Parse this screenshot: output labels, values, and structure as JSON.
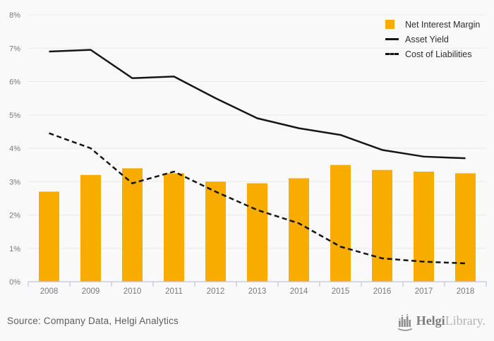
{
  "chart_data": {
    "type": "bar",
    "title": "",
    "xlabel": "",
    "ylabel": "",
    "categories": [
      "2008",
      "2009",
      "2010",
      "2011",
      "2012",
      "2013",
      "2014",
      "2015",
      "2016",
      "2017",
      "2018"
    ],
    "series": [
      {
        "name": "Net Interest Margin",
        "type": "bar",
        "style": "solid",
        "values": [
          2.7,
          3.2,
          3.4,
          3.25,
          3.0,
          2.95,
          3.1,
          3.5,
          3.35,
          3.3,
          3.25
        ]
      },
      {
        "name": "Asset Yield",
        "type": "line",
        "style": "solid",
        "values": [
          6.9,
          6.95,
          6.1,
          6.15,
          5.5,
          4.9,
          4.6,
          4.4,
          3.95,
          3.75,
          3.7
        ]
      },
      {
        "name": "Cost of Liabilities",
        "type": "line",
        "style": "dashed",
        "values": [
          4.45,
          4.0,
          2.95,
          3.3,
          2.7,
          2.15,
          1.75,
          1.05,
          0.7,
          0.6,
          0.55
        ]
      }
    ],
    "ylim": [
      0,
      8
    ],
    "ytick_step": 1,
    "ytick_suffix": "%",
    "grid": true,
    "legend_position": "top-right"
  },
  "colors": {
    "bar": "#F8AC00",
    "line": "#161616",
    "grid": "#e9e9e9",
    "axis": "#bcc7dd",
    "tick_label": "#77797c",
    "background": "#f9f9f9",
    "legend_text": "#2d2d2d"
  },
  "footer": {
    "source": "Source: Company Data, Helgi Analytics",
    "logo_primary": "Helgi",
    "logo_secondary": "Library."
  }
}
